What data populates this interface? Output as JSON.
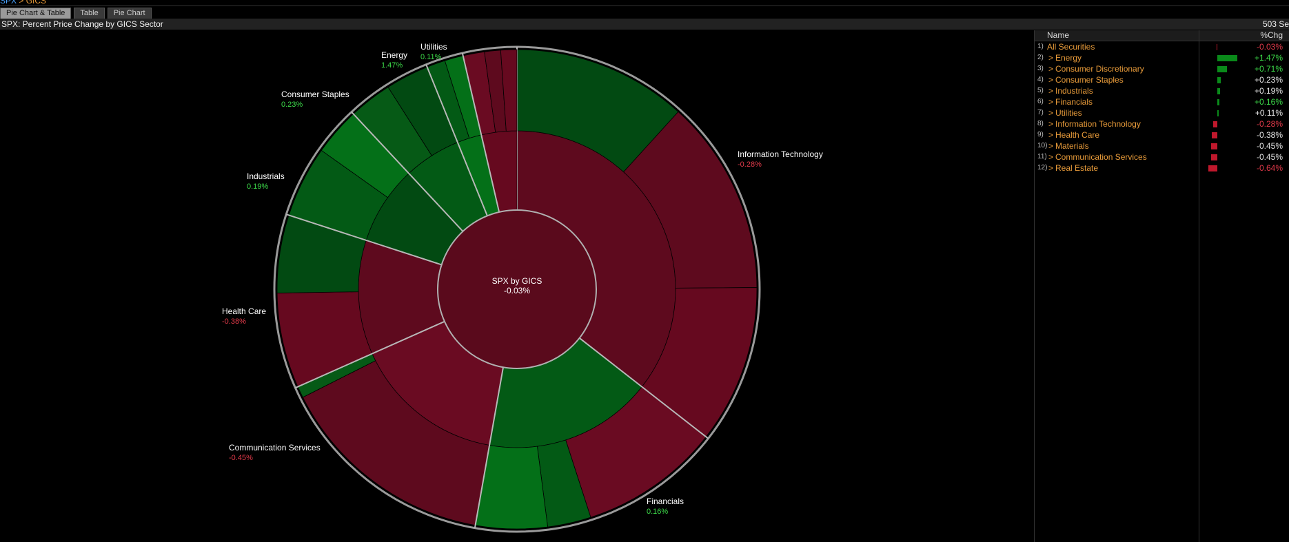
{
  "breadcrumb": {
    "part1": "SPX",
    "sep": " > ",
    "part2": "GICS"
  },
  "tabs": [
    {
      "label": "Pie Chart & Table",
      "active": true
    },
    {
      "label": "Table",
      "active": false
    },
    {
      "label": "Pie Chart",
      "active": false
    }
  ],
  "title": "SPX: Percent Price Change by GICS Sector",
  "security_count": "503 Se",
  "center": {
    "label": "SPX by GICS",
    "value": "-0.03%"
  },
  "colors": {
    "positive": "#3ddc4a",
    "negative": "#e23a4a",
    "neutral": "#e8e8e8",
    "accent": "#e89b3a"
  },
  "chart_data": {
    "type": "pie",
    "subtype": "sunburst",
    "center": {
      "label": "SPX by GICS",
      "value": -0.03
    },
    "sectors": [
      {
        "name": "Information Technology",
        "chg": -0.28,
        "label": "-0.28%"
      },
      {
        "name": "Financials",
        "chg": 0.16,
        "label": "0.16%"
      },
      {
        "name": "Communication Services",
        "chg": -0.45,
        "label": "-0.45%"
      },
      {
        "name": "Health Care",
        "chg": -0.38,
        "label": "-0.38%"
      },
      {
        "name": "Industrials",
        "chg": 0.19,
        "label": "0.19%"
      },
      {
        "name": "Consumer Staples",
        "chg": 0.23,
        "label": "0.23%"
      },
      {
        "name": "Energy",
        "chg": 1.47,
        "label": "1.47%"
      },
      {
        "name": "Utilities",
        "chg": 0.11,
        "label": "0.11%"
      }
    ]
  },
  "table": {
    "headers": {
      "name": "Name",
      "chg": "%Chg"
    },
    "rows": [
      {
        "num": "1)",
        "name": "All Securities",
        "chg": -0.03,
        "label": "-0.03%",
        "chevron": false,
        "valcolor": "neg"
      },
      {
        "num": "2)",
        "name": "Energy",
        "chg": 1.47,
        "label": "+1.47%",
        "chevron": true,
        "valcolor": "pos"
      },
      {
        "num": "3)",
        "name": "Consumer Discretionary",
        "chg": 0.71,
        "label": "+0.71%",
        "chevron": true,
        "valcolor": "pos"
      },
      {
        "num": "4)",
        "name": "Consumer Staples",
        "chg": 0.23,
        "label": "+0.23%",
        "chevron": true,
        "valcolor": "zero"
      },
      {
        "num": "5)",
        "name": "Industrials",
        "chg": 0.19,
        "label": "+0.19%",
        "chevron": true,
        "valcolor": "zero"
      },
      {
        "num": "6)",
        "name": "Financials",
        "chg": 0.16,
        "label": "+0.16%",
        "chevron": true,
        "valcolor": "pos"
      },
      {
        "num": "7)",
        "name": "Utilities",
        "chg": 0.11,
        "label": "+0.11%",
        "chevron": true,
        "valcolor": "zero"
      },
      {
        "num": "8)",
        "name": "Information Technology",
        "chg": -0.28,
        "label": "-0.28%",
        "chevron": true,
        "valcolor": "neg"
      },
      {
        "num": "9)",
        "name": "Health Care",
        "chg": -0.38,
        "label": "-0.38%",
        "chevron": true,
        "valcolor": "zero"
      },
      {
        "num": "10)",
        "name": "Materials",
        "chg": -0.45,
        "label": "-0.45%",
        "chevron": true,
        "valcolor": "zero"
      },
      {
        "num": "11)",
        "name": "Communication Services",
        "chg": -0.45,
        "label": "-0.45%",
        "chevron": true,
        "valcolor": "zero"
      },
      {
        "num": "12)",
        "name": "Real Estate",
        "chg": -0.64,
        "label": "-0.64%",
        "chevron": true,
        "valcolor": "neg"
      }
    ]
  }
}
